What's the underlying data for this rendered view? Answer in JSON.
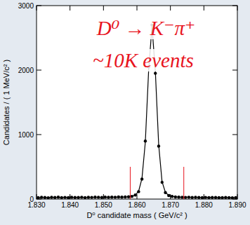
{
  "chart_data": {
    "type": "scatter",
    "x_label": "D⁰ candidate mass ( GeV/c² )",
    "y_label": "Candidates / ( 1 MeV/c² )",
    "x": [
      1.8305,
      1.8315,
      1.8325,
      1.8335,
      1.8345,
      1.8355,
      1.8365,
      1.8375,
      1.8385,
      1.8395,
      1.8405,
      1.8415,
      1.8425,
      1.8435,
      1.8445,
      1.8455,
      1.8465,
      1.8475,
      1.8485,
      1.8495,
      1.8505,
      1.8515,
      1.8525,
      1.8535,
      1.8545,
      1.8555,
      1.8565,
      1.8575,
      1.8585,
      1.8595,
      1.8605,
      1.8615,
      1.8625,
      1.8635,
      1.8645,
      1.8655,
      1.8665,
      1.8675,
      1.8685,
      1.8695,
      1.8705,
      1.8715,
      1.8725,
      1.8735,
      1.8745,
      1.8755,
      1.8765,
      1.8775,
      1.8785,
      1.8795,
      1.8805,
      1.8815,
      1.8825,
      1.8835,
      1.8845,
      1.8855,
      1.8865,
      1.8875,
      1.8885,
      1.8895
    ],
    "series": [
      {
        "type": "scatter",
        "color": "#000000",
        "marker": "circle",
        "values": [
          22,
          28,
          25,
          20,
          27,
          24,
          30,
          23,
          26,
          21,
          28,
          25,
          24,
          29,
          22,
          27,
          26,
          30,
          28,
          25,
          31,
          27,
          30,
          29,
          32,
          30,
          33,
          35,
          42,
          62,
          115,
          310,
          900,
          2050,
          2700,
          1950,
          820,
          260,
          100,
          55,
          40,
          33,
          30,
          28,
          26,
          29,
          24,
          27,
          25,
          23,
          26,
          22,
          24,
          25,
          21,
          23,
          24,
          22,
          20,
          23
        ]
      },
      {
        "type": "line",
        "color": "#000000",
        "line_style": "solid",
        "values": [
          24,
          24,
          24,
          24,
          25,
          25,
          25,
          25,
          25,
          25,
          25,
          26,
          26,
          26,
          26,
          26,
          27,
          27,
          27,
          27,
          28,
          28,
          28,
          29,
          29,
          30,
          31,
          34,
          42,
          62,
          120,
          320,
          880,
          2000,
          2680,
          1980,
          840,
          270,
          105,
          58,
          42,
          34,
          31,
          30,
          29,
          28,
          27,
          27,
          26,
          26,
          25,
          25,
          25,
          24,
          24,
          24,
          23,
          23,
          23,
          23
        ]
      }
    ],
    "xlim": [
      1.83,
      1.89
    ],
    "xticks": [
      {
        "value": 1.83,
        "label": "1.830"
      },
      {
        "value": 1.84,
        "label": "1.840"
      },
      {
        "value": 1.85,
        "label": "1.850"
      },
      {
        "value": 1.86,
        "label": "1.860"
      },
      {
        "value": 1.87,
        "label": "1.870"
      },
      {
        "value": 1.88,
        "label": "1.880"
      },
      {
        "value": 1.89,
        "label": "1.890"
      }
    ],
    "ylim": [
      0,
      3000
    ],
    "yticks": [
      0,
      1000,
      2000,
      3000
    ],
    "grid": false,
    "cut_lines": {
      "x": [
        1.858,
        1.874
      ],
      "top": 500,
      "color": "#e8141e"
    },
    "annotations": [
      {
        "text": "D⁰ → K⁻π⁺",
        "color": "#e8141e"
      },
      {
        "text": "~10K events",
        "color": "#e8141e"
      }
    ]
  }
}
